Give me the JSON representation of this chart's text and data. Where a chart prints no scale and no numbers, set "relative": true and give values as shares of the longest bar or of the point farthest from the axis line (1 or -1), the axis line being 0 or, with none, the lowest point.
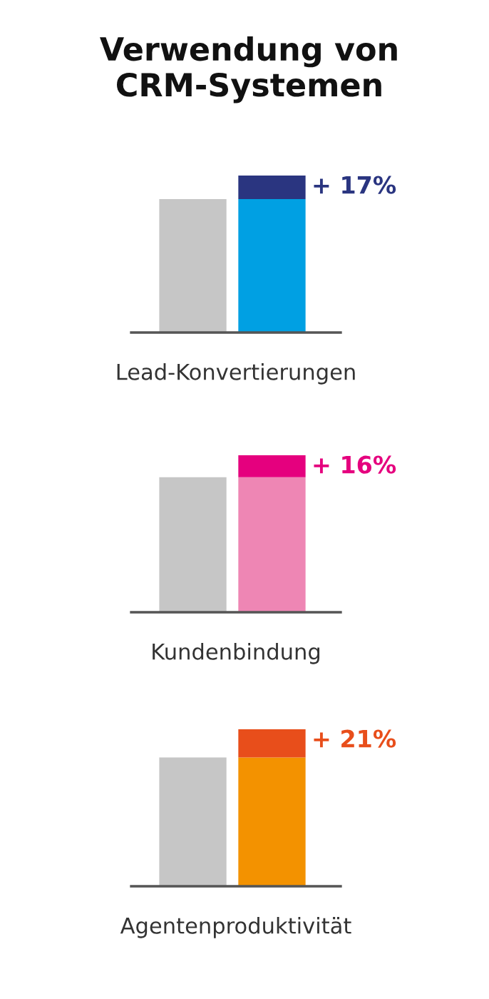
{
  "chart_data": [
    {
      "type": "bar",
      "title": "Verwendung von\nCRM-Systemen",
      "xlabel": "Lead-Konvertierungen",
      "categories": [
        null,
        null
      ],
      "stacked": true,
      "relative": true,
      "series": [
        {
          "colors": [
            "#c6c6c6",
            "#00a0e3"
          ],
          "values": [
            0.85,
            0.85
          ]
        },
        {
          "color": "#2a3580",
          "values": [
            null,
            0.15
          ]
        }
      ],
      "annotations": [
        "+ 17%"
      ]
    },
    {
      "type": "bar",
      "xlabel": "Kundenbindung",
      "categories": [
        null,
        null
      ],
      "stacked": true,
      "relative": true,
      "series": [
        {
          "colors": [
            "#c6c6c6",
            "#ee86b4"
          ],
          "values": [
            0.86,
            0.86
          ]
        },
        {
          "color": "#e5007e",
          "values": [
            null,
            0.14
          ]
        }
      ],
      "annotations": [
        "+ 16%"
      ]
    },
    {
      "type": "bar",
      "xlabel": "Agentenproduktivität",
      "categories": [
        null,
        null
      ],
      "stacked": true,
      "relative": true,
      "series": [
        {
          "colors": [
            "#c6c6c6",
            "#f39200"
          ],
          "values": [
            0.82,
            0.82
          ]
        },
        {
          "color": "#e84e1b",
          "values": [
            null,
            0.18
          ]
        }
      ],
      "annotations": [
        "+ 21%"
      ]
    }
  ]
}
